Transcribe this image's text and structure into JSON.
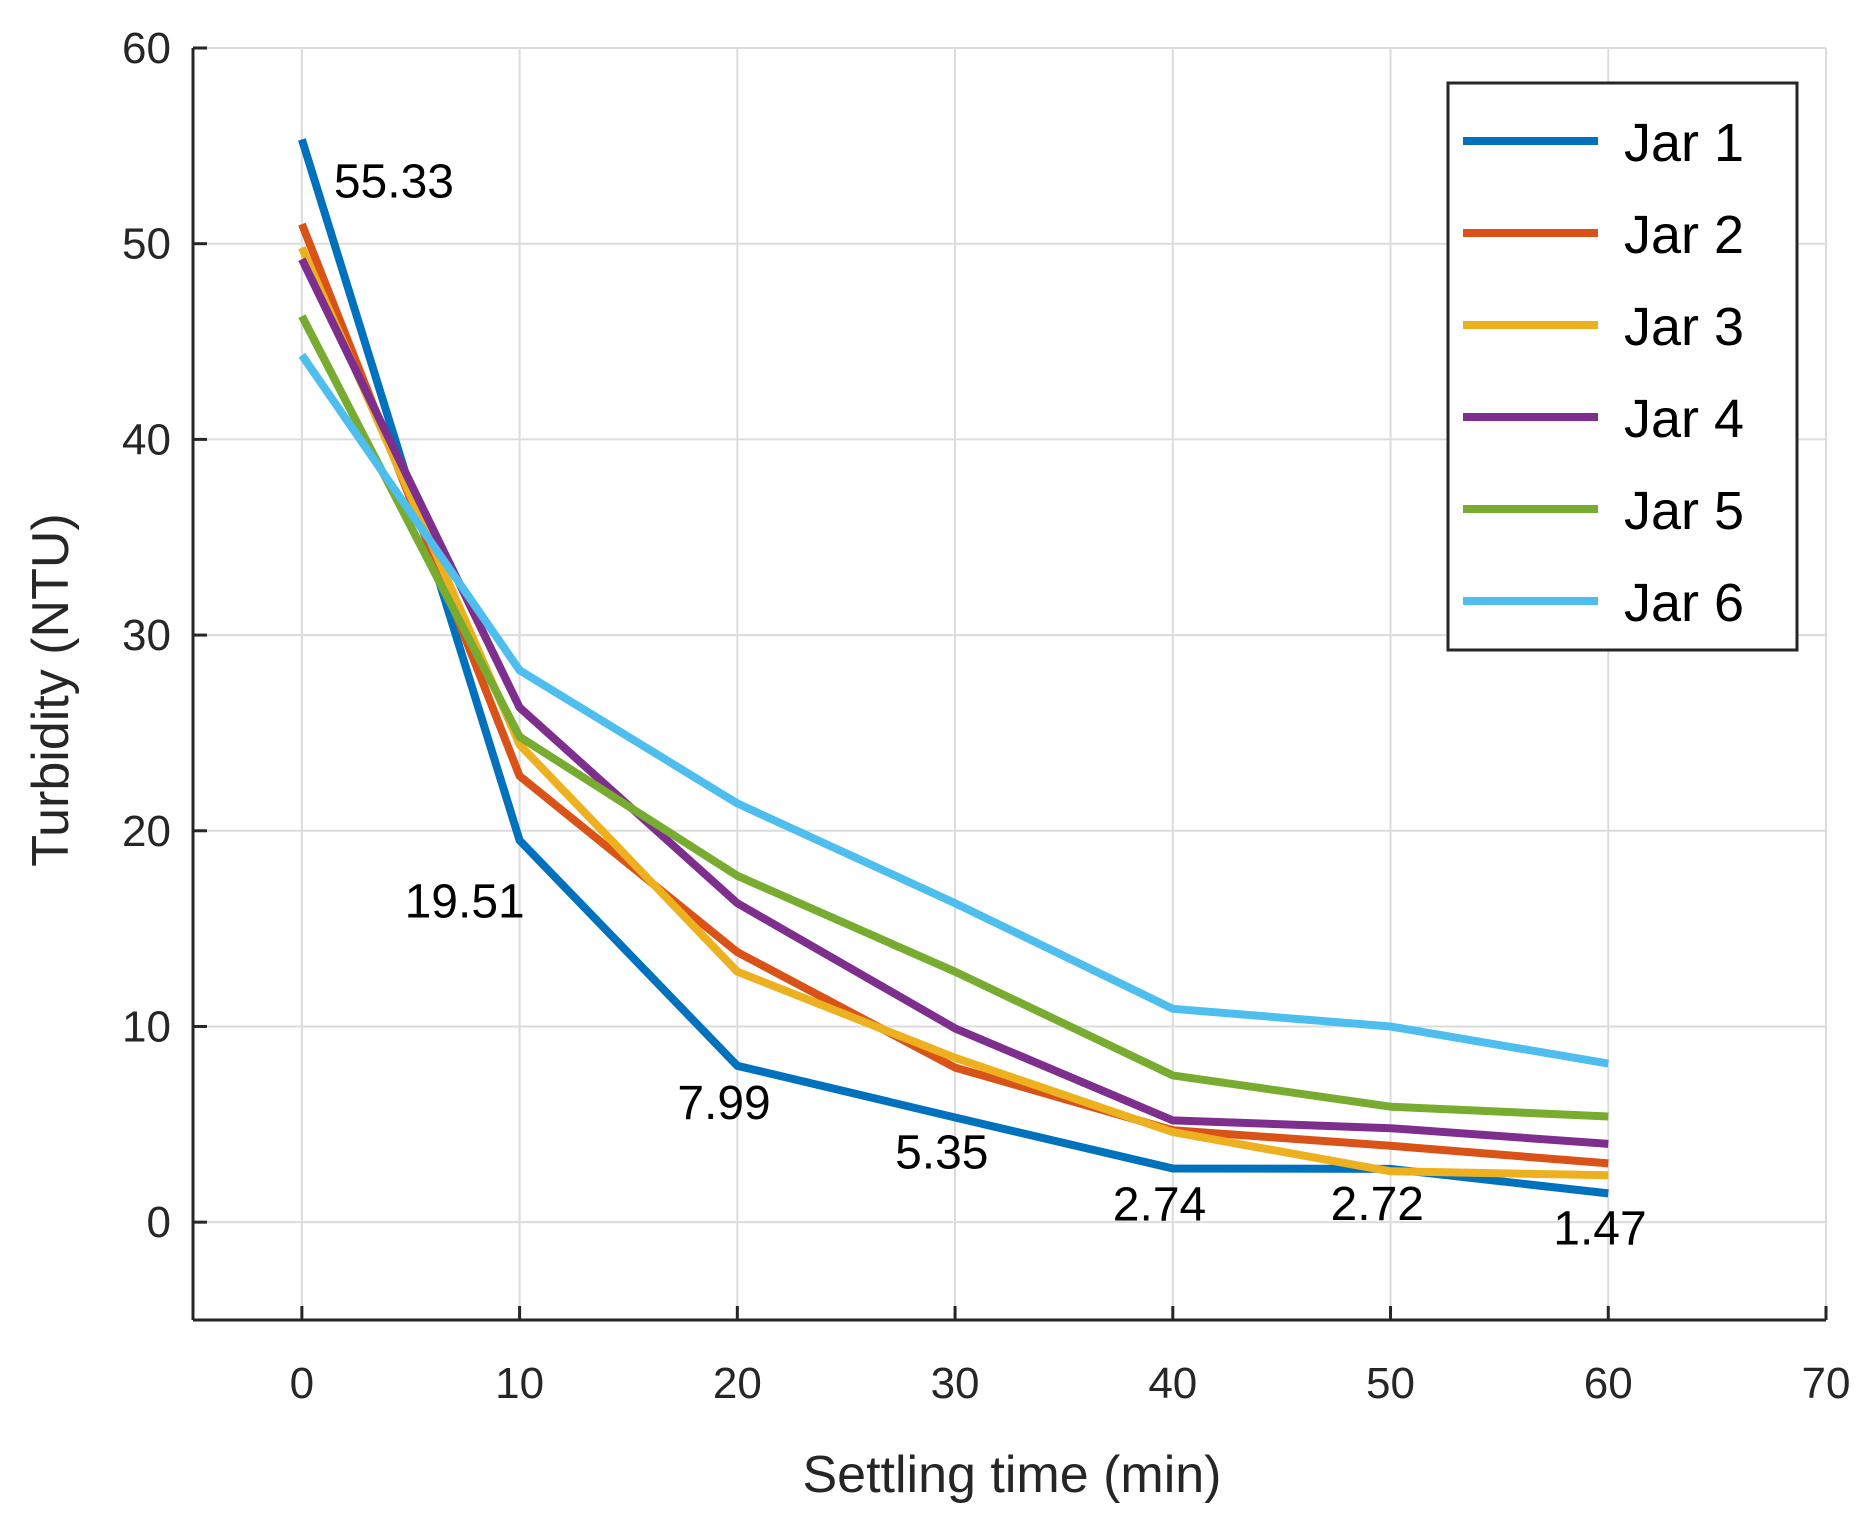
{
  "chart_data": {
    "type": "line",
    "title": "",
    "xlabel": "Settling time (min)",
    "ylabel": "Turbidity (NTU)",
    "xlim": [
      -5,
      70
    ],
    "ylim": [
      -5,
      60
    ],
    "xticks": [
      0,
      10,
      20,
      30,
      40,
      50,
      60,
      70
    ],
    "yticks": [
      0,
      10,
      20,
      30,
      40,
      50,
      60
    ],
    "grid": true,
    "legend_position": "top-right",
    "x": [
      0,
      10,
      20,
      30,
      40,
      50,
      60
    ],
    "series": [
      {
        "name": "Jar 1",
        "color": "#0072BD",
        "values": [
          55.33,
          19.51,
          7.99,
          5.35,
          2.74,
          2.72,
          1.47
        ]
      },
      {
        "name": "Jar 2",
        "color": "#D95319",
        "values": [
          51.0,
          22.8,
          13.8,
          7.9,
          4.7,
          3.9,
          3.0
        ]
      },
      {
        "name": "Jar 3",
        "color": "#EDB120",
        "values": [
          49.8,
          24.4,
          12.8,
          8.4,
          4.6,
          2.6,
          2.4
        ]
      },
      {
        "name": "Jar 4",
        "color": "#7E2F8E",
        "values": [
          49.2,
          26.3,
          16.3,
          9.9,
          5.2,
          4.8,
          4.0
        ]
      },
      {
        "name": "Jar 5",
        "color": "#77AC30",
        "values": [
          46.3,
          24.8,
          17.7,
          12.8,
          7.5,
          5.9,
          5.4
        ]
      },
      {
        "name": "Jar 6",
        "color": "#4DBEEE",
        "values": [
          44.3,
          28.2,
          21.4,
          16.3,
          10.9,
          10.0,
          8.1
        ]
      }
    ],
    "annotations": [
      "55.33",
      "19.51",
      "7.99",
      "5.35",
      "2.74",
      "2.72",
      "1.47"
    ]
  }
}
